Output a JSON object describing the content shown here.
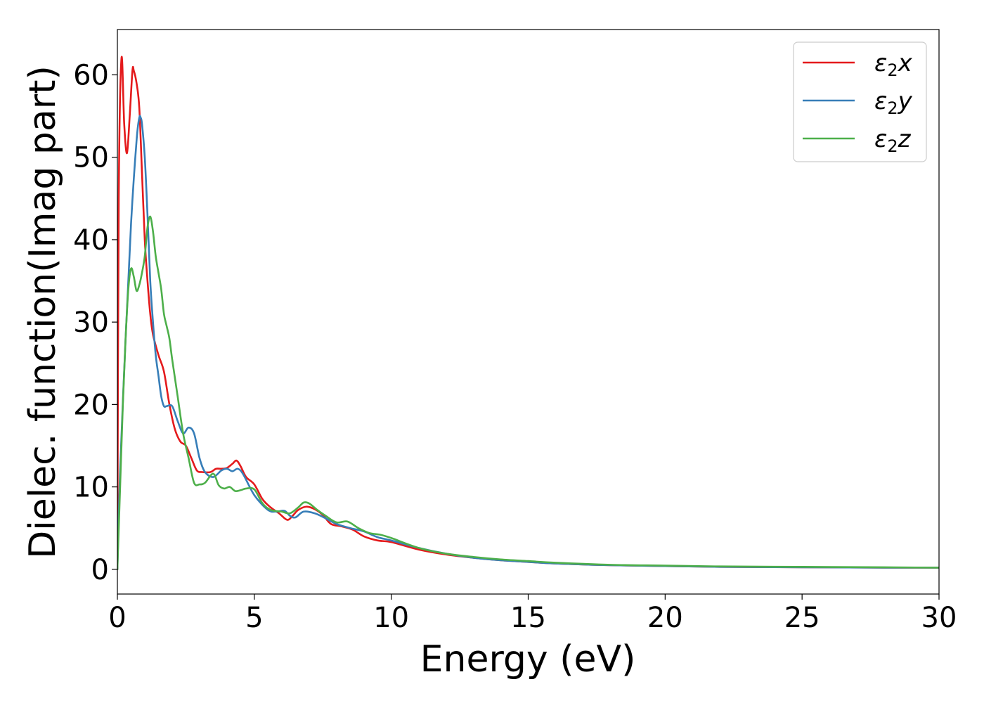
{
  "chart_data": {
    "type": "line",
    "xlabel": "Energy (eV)",
    "ylabel": "Dielec. function(Imag part)",
    "xlim": [
      0,
      30
    ],
    "ylim": [
      -3,
      65.5
    ],
    "xticks": [
      0,
      5,
      10,
      15,
      20,
      25,
      30
    ],
    "yticks": [
      0,
      10,
      20,
      30,
      40,
      50,
      60
    ],
    "xtick_labels": [
      "0",
      "5",
      "10",
      "15",
      "20",
      "25",
      "30"
    ],
    "ytick_labels": [
      "0",
      "10",
      "20",
      "30",
      "40",
      "50",
      "60"
    ],
    "grid": false,
    "legend_position": "top-right",
    "series": [
      {
        "name": "ε₂x",
        "legend_symbol": "ε",
        "legend_sub": "2",
        "legend_var": "x",
        "color": "#e41a1c",
        "x": [
          0,
          0.05,
          0.15,
          0.25,
          0.35,
          0.45,
          0.55,
          0.6,
          0.7,
          0.8,
          0.9,
          1.0,
          1.1,
          1.2,
          1.3,
          1.5,
          1.7,
          1.9,
          2.1,
          2.3,
          2.5,
          2.7,
          2.9,
          3.1,
          3.4,
          3.6,
          3.8,
          4.0,
          4.2,
          4.35,
          4.5,
          4.7,
          5.0,
          5.3,
          5.6,
          5.9,
          6.2,
          6.4,
          6.6,
          6.9,
          7.2,
          7.5,
          7.8,
          8.2,
          8.6,
          9.0,
          9.5,
          10,
          11,
          12,
          13,
          14,
          15,
          16,
          18,
          20,
          22,
          25,
          28,
          30
        ],
        "y": [
          0,
          45,
          62,
          54,
          50.5,
          55,
          60.5,
          60.5,
          59,
          56,
          48,
          40,
          35,
          31,
          28.5,
          26,
          24,
          20,
          17,
          15.5,
          15,
          13.5,
          12,
          11.8,
          11.8,
          12.2,
          12.2,
          12.3,
          12.8,
          13.2,
          12.5,
          11.2,
          10.3,
          8.5,
          7.5,
          6.8,
          6.0,
          6.5,
          7.2,
          7.6,
          7.3,
          6.6,
          5.5,
          5.2,
          4.8,
          4.0,
          3.5,
          3.3,
          2.4,
          1.8,
          1.4,
          1.1,
          0.9,
          0.7,
          0.5,
          0.4,
          0.3,
          0.25,
          0.2,
          0.2
        ]
      },
      {
        "name": "ε₂y",
        "legend_symbol": "ε",
        "legend_sub": "2",
        "legend_var": "y",
        "color": "#377eb8",
        "x": [
          0,
          0.1,
          0.3,
          0.5,
          0.7,
          0.8,
          0.85,
          0.9,
          1.0,
          1.1,
          1.2,
          1.3,
          1.4,
          1.5,
          1.6,
          1.7,
          1.8,
          2.0,
          2.2,
          2.4,
          2.6,
          2.8,
          3.0,
          3.2,
          3.5,
          3.8,
          4.0,
          4.2,
          4.4,
          4.6,
          5.0,
          5.5,
          5.8,
          6.1,
          6.3,
          6.5,
          6.8,
          7.2,
          7.6,
          8.0,
          8.5,
          9.0,
          9.5,
          10,
          11,
          12,
          13,
          14,
          15,
          16,
          18,
          20,
          22,
          25,
          28,
          30
        ],
        "y": [
          0,
          12,
          28,
          42,
          52,
          54.8,
          54.8,
          54,
          50,
          43,
          35,
          30,
          26,
          23.5,
          21,
          19.8,
          19.8,
          19.8,
          18,
          16.5,
          17.2,
          16.5,
          13.5,
          11.8,
          11.2,
          12.0,
          12.2,
          11.9,
          12.2,
          11.5,
          9.0,
          7.2,
          7.0,
          7.1,
          6.5,
          6.3,
          7.0,
          6.8,
          6.2,
          5.5,
          5.0,
          4.6,
          3.9,
          3.5,
          2.6,
          1.9,
          1.4,
          1.1,
          0.9,
          0.7,
          0.5,
          0.4,
          0.3,
          0.25,
          0.2,
          0.2
        ]
      },
      {
        "name": "ε₂z",
        "legend_symbol": "ε",
        "legend_sub": "2",
        "legend_var": "z",
        "color": "#4daf4a",
        "x": [
          0,
          0.1,
          0.2,
          0.3,
          0.4,
          0.5,
          0.6,
          0.7,
          0.8,
          0.9,
          1.0,
          1.1,
          1.2,
          1.3,
          1.4,
          1.5,
          1.6,
          1.7,
          1.8,
          1.9,
          2.0,
          2.2,
          2.4,
          2.6,
          2.8,
          3.0,
          3.2,
          3.5,
          3.7,
          3.9,
          4.1,
          4.3,
          4.5,
          4.7,
          5.0,
          5.3,
          5.6,
          6.0,
          6.3,
          6.6,
          6.8,
          7.0,
          7.3,
          7.6,
          8.0,
          8.4,
          8.8,
          9.2,
          9.6,
          10,
          11,
          12,
          13,
          14,
          15,
          16,
          18,
          20,
          22,
          25,
          28,
          30
        ],
        "y": [
          0,
          10,
          20,
          28,
          34,
          36.5,
          35.5,
          33.8,
          34.5,
          36,
          38,
          41.5,
          42.8,
          41,
          38,
          36,
          34,
          31,
          29.5,
          28,
          25.5,
          21,
          16.5,
          13.5,
          10.5,
          10.3,
          10.5,
          11.6,
          10.2,
          9.8,
          10.0,
          9.5,
          9.6,
          9.8,
          9.7,
          8.0,
          7.2,
          7.0,
          6.8,
          7.5,
          8.1,
          8.0,
          7.2,
          6.5,
          5.7,
          5.8,
          5.0,
          4.4,
          4.2,
          3.8,
          2.6,
          1.9,
          1.5,
          1.2,
          1.0,
          0.8,
          0.55,
          0.45,
          0.35,
          0.3,
          0.25,
          0.2
        ]
      }
    ]
  }
}
